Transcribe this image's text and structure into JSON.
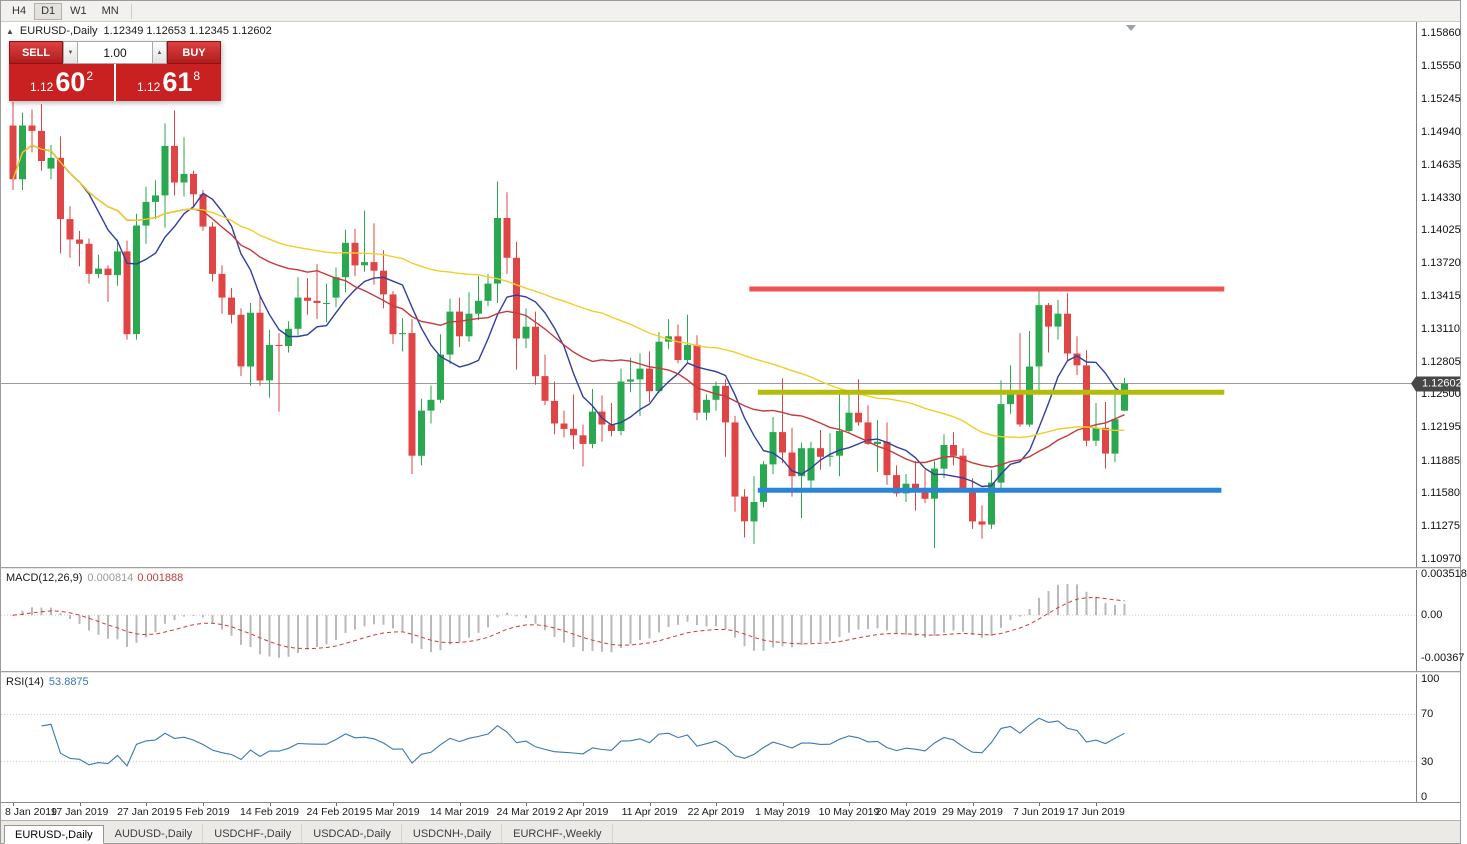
{
  "toolbar": {
    "timeframes": [
      "H4",
      "D1",
      "W1",
      "MN"
    ],
    "active": "D1"
  },
  "chart": {
    "symbol_title": "EURUSD-,Daily",
    "ohlc_text": "1.12349 1.12653 1.12345 1.12602",
    "current_price_label": "1.12602"
  },
  "trade": {
    "sell_label": "SELL",
    "buy_label": "BUY",
    "volume": "1.00",
    "sell_price": {
      "prefix": "1.12",
      "main": "60",
      "pip": "2"
    },
    "buy_price": {
      "prefix": "1.12",
      "main": "61",
      "pip": "8"
    }
  },
  "icons": {
    "collapse": "▲",
    "volume_down": "▼",
    "volume_up": "▲"
  },
  "price_axis": [
    "1.15860",
    "1.15550",
    "1.15245",
    "1.14940",
    "1.14635",
    "1.14330",
    "1.14025",
    "1.13720",
    "1.13415",
    "1.13110",
    "1.12805",
    "1.12500",
    "1.12195",
    "1.11885",
    "1.11580",
    "1.11275",
    "1.10970"
  ],
  "macd": {
    "name": "MACD(12,26,9)",
    "value_main": "0.000814",
    "value_signal": "0.001888",
    "axis": [
      "0.003518",
      "0.00",
      "-0.00367"
    ]
  },
  "rsi": {
    "name": "RSI(14)",
    "value": "53.8875",
    "axis": [
      "100",
      "70",
      "30",
      "0"
    ]
  },
  "tabs": [
    {
      "label": "EURUSD-,Daily",
      "active": true
    },
    {
      "label": "AUDUSD-,Daily",
      "active": false
    },
    {
      "label": "USDCHF-,Daily",
      "active": false
    },
    {
      "label": "USDCAD-,Daily",
      "active": false
    },
    {
      "label": "USDCNH-,Daily",
      "active": false
    },
    {
      "label": "EURCHF-,Weekly",
      "active": false
    }
  ],
  "chart_data": {
    "type": "candlestick",
    "symbol": "EURUSD-",
    "timeframe": "Daily",
    "current_bar": {
      "open": 1.12349,
      "high": 1.12653,
      "low": 1.12345,
      "close": 1.12602
    },
    "price_max": 1.1586,
    "price_min": 1.1097,
    "current_price": 1.12602,
    "ma_periods": {
      "fast": 8,
      "medium": 20,
      "slow": 50
    },
    "macd": {
      "fast": 12,
      "slow": 26,
      "signal": 9,
      "axis_max": 0.003518,
      "axis_min": -0.00367,
      "current_main": 0.000814,
      "current_signal": 0.001888
    },
    "rsi": {
      "period": 14,
      "current": 53.8875
    },
    "levels": [
      {
        "name": "resistance-level",
        "price": 1.1348,
        "color": "#ef5350",
        "from_index": 77.5,
        "to_index": 127.5,
        "width": 5
      },
      {
        "name": "mid-level",
        "price": 1.1252,
        "color": "#b3bd08",
        "from_index": 78.4,
        "to_index": 127.5,
        "width": 5
      },
      {
        "name": "support-level",
        "price": 1.1161,
        "color": "#2a84d8",
        "from_index": 78.4,
        "to_index": 127.2,
        "width": 5
      }
    ],
    "colors": {
      "bull": "#2aa84f",
      "bear": "#e04545",
      "ma_fast": "#2f3f9e",
      "ma_mid": "#c43c3c",
      "ma_slow": "#efcf2a",
      "macd_hist": "#b9b9b9",
      "macd_signal": "#cf3a3a",
      "rsi": "#3a77b5",
      "current_line": "#9b9b9b"
    },
    "date_ticks": [
      {
        "label": "8 Jan 2019",
        "index": 0
      },
      {
        "label": "17 Jan 2019",
        "index": 7
      },
      {
        "label": "27 Jan 2019",
        "index": 14
      },
      {
        "label": "5 Feb 2019",
        "index": 20
      },
      {
        "label": "14 Feb 2019",
        "index": 27
      },
      {
        "label": "24 Feb 2019",
        "index": 34
      },
      {
        "label": "5 Mar 2019",
        "index": 40
      },
      {
        "label": "14 Mar 2019",
        "index": 47
      },
      {
        "label": "24 Mar 2019",
        "index": 54
      },
      {
        "label": "2 Apr 2019",
        "index": 60
      },
      {
        "label": "11 Apr 2019",
        "index": 67
      },
      {
        "label": "22 Apr 2019",
        "index": 74
      },
      {
        "label": "1 May 2019",
        "index": 81
      },
      {
        "label": "10 May 2019",
        "index": 88
      },
      {
        "label": "20 May 2019",
        "index": 94
      },
      {
        "label": "29 May 2019",
        "index": 101
      },
      {
        "label": "7 Jun 2019",
        "index": 108
      },
      {
        "label": "17 Jun 2019",
        "index": 114
      }
    ],
    "candles": [
      [
        1.15,
        1.1522,
        1.144,
        1.145
      ],
      [
        1.145,
        1.1512,
        1.144,
        1.15
      ],
      [
        1.15,
        1.1515,
        1.1475,
        1.1495
      ],
      [
        1.1495,
        1.152,
        1.1458,
        1.1467
      ],
      [
        1.146,
        1.1482,
        1.145,
        1.147
      ],
      [
        1.147,
        1.149,
        1.1381,
        1.1413
      ],
      [
        1.1413,
        1.1425,
        1.1377,
        1.1394
      ],
      [
        1.1394,
        1.1402,
        1.1369,
        1.139
      ],
      [
        1.139,
        1.1395,
        1.1353,
        1.1362
      ],
      [
        1.1362,
        1.138,
        1.1358,
        1.1367
      ],
      [
        1.1367,
        1.137,
        1.1336,
        1.1361
      ],
      [
        1.1361,
        1.1394,
        1.1351,
        1.1383
      ],
      [
        1.1383,
        1.1393,
        1.1301,
        1.1306
      ],
      [
        1.1306,
        1.1418,
        1.1301,
        1.1407
      ],
      [
        1.1407,
        1.1443,
        1.139,
        1.1429
      ],
      [
        1.1429,
        1.1449,
        1.1413,
        1.1435
      ],
      [
        1.1435,
        1.1502,
        1.1405,
        1.1481
      ],
      [
        1.1481,
        1.1514,
        1.1435,
        1.1447
      ],
      [
        1.1447,
        1.1489,
        1.1434,
        1.1455
      ],
      [
        1.1455,
        1.1458,
        1.1425,
        1.1436
      ],
      [
        1.1436,
        1.144,
        1.1402,
        1.1406
      ],
      [
        1.1406,
        1.141,
        1.1355,
        1.1362
      ],
      [
        1.1362,
        1.137,
        1.1325,
        1.134
      ],
      [
        1.134,
        1.1349,
        1.1316,
        1.1324
      ],
      [
        1.1324,
        1.133,
        1.1267,
        1.1276
      ],
      [
        1.1276,
        1.1335,
        1.1258,
        1.1326
      ],
      [
        1.1326,
        1.1341,
        1.1258,
        1.1263
      ],
      [
        1.1263,
        1.131,
        1.1247,
        1.1296
      ],
      [
        1.1296,
        1.1307,
        1.1234,
        1.1295
      ],
      [
        1.1295,
        1.1318,
        1.1289,
        1.1311
      ],
      [
        1.1311,
        1.1359,
        1.1305,
        1.134
      ],
      [
        1.134,
        1.1358,
        1.1324,
        1.1337
      ],
      [
        1.1337,
        1.1371,
        1.132,
        1.1335
      ],
      [
        1.1335,
        1.1353,
        1.1317,
        1.1335
      ],
      [
        1.134,
        1.1368,
        1.1331,
        1.1359
      ],
      [
        1.1359,
        1.1403,
        1.1345,
        1.1391
      ],
      [
        1.1391,
        1.1404,
        1.136,
        1.137
      ],
      [
        1.137,
        1.1421,
        1.1364,
        1.1373
      ],
      [
        1.1373,
        1.1409,
        1.1352,
        1.1365
      ],
      [
        1.1365,
        1.1384,
        1.133,
        1.1343
      ],
      [
        1.1343,
        1.1346,
        1.1297,
        1.1306
      ],
      [
        1.1306,
        1.1321,
        1.129,
        1.1307
      ],
      [
        1.1307,
        1.132,
        1.1176,
        1.1193
      ],
      [
        1.1193,
        1.1246,
        1.1184,
        1.1235
      ],
      [
        1.1235,
        1.1258,
        1.1223,
        1.1245
      ],
      [
        1.1245,
        1.1306,
        1.1242,
        1.1287
      ],
      [
        1.1287,
        1.1339,
        1.1278,
        1.1327
      ],
      [
        1.1327,
        1.134,
        1.1294,
        1.1304
      ],
      [
        1.1304,
        1.1345,
        1.1299,
        1.1325
      ],
      [
        1.1325,
        1.136,
        1.1319,
        1.1337
      ],
      [
        1.1337,
        1.1362,
        1.1332,
        1.1353
      ],
      [
        1.1353,
        1.1448,
        1.1335,
        1.1414
      ],
      [
        1.1414,
        1.1438,
        1.1362,
        1.1377
      ],
      [
        1.1377,
        1.1392,
        1.1273,
        1.1302
      ],
      [
        1.1302,
        1.133,
        1.1293,
        1.1313
      ],
      [
        1.1313,
        1.1327,
        1.1259,
        1.1267
      ],
      [
        1.1267,
        1.1287,
        1.124,
        1.1244
      ],
      [
        1.1244,
        1.1262,
        1.1213,
        1.1223
      ],
      [
        1.1223,
        1.1235,
        1.121,
        1.1218
      ],
      [
        1.1218,
        1.125,
        1.1199,
        1.1212
      ],
      [
        1.1212,
        1.1222,
        1.1183,
        1.1204
      ],
      [
        1.1204,
        1.1255,
        1.12,
        1.1234
      ],
      [
        1.1234,
        1.1249,
        1.1206,
        1.1222
      ],
      [
        1.1222,
        1.1242,
        1.1211,
        1.1216
      ],
      [
        1.1216,
        1.1274,
        1.1212,
        1.1262
      ],
      [
        1.1262,
        1.1284,
        1.1252,
        1.1264
      ],
      [
        1.1264,
        1.1288,
        1.123,
        1.1274
      ],
      [
        1.1274,
        1.129,
        1.1243,
        1.1253
      ],
      [
        1.1253,
        1.1308,
        1.1251,
        1.1299
      ],
      [
        1.1299,
        1.132,
        1.1292,
        1.1304
      ],
      [
        1.1304,
        1.1315,
        1.1279,
        1.1282
      ],
      [
        1.1282,
        1.1324,
        1.128,
        1.1296
      ],
      [
        1.1296,
        1.1305,
        1.1226,
        1.1233
      ],
      [
        1.1233,
        1.125,
        1.1226,
        1.1245
      ],
      [
        1.1245,
        1.1262,
        1.1235,
        1.1258
      ],
      [
        1.1258,
        1.1264,
        1.1192,
        1.1224
      ],
      [
        1.1224,
        1.123,
        1.1141,
        1.1155
      ],
      [
        1.1155,
        1.1162,
        1.1117,
        1.1132
      ],
      [
        1.1132,
        1.1174,
        1.1111,
        1.115
      ],
      [
        1.115,
        1.1188,
        1.1145,
        1.1185
      ],
      [
        1.1185,
        1.1229,
        1.1176,
        1.1215
      ],
      [
        1.1215,
        1.1265,
        1.1186,
        1.1196
      ],
      [
        1.1196,
        1.1219,
        1.1155,
        1.1174
      ],
      [
        1.1174,
        1.1205,
        1.1135,
        1.12
      ],
      [
        1.117,
        1.1206,
        1.116,
        1.12
      ],
      [
        1.12,
        1.1217,
        1.118,
        1.1192
      ],
      [
        1.1192,
        1.1214,
        1.1183,
        1.1193
      ],
      [
        1.1193,
        1.1251,
        1.1174,
        1.1216
      ],
      [
        1.1216,
        1.1254,
        1.1214,
        1.1233
      ],
      [
        1.1233,
        1.1264,
        1.1221,
        1.1224
      ],
      [
        1.1224,
        1.124,
        1.1203,
        1.1204
      ],
      [
        1.1204,
        1.1226,
        1.1178,
        1.1206
      ],
      [
        1.1206,
        1.1224,
        1.1166,
        1.1175
      ],
      [
        1.1175,
        1.1184,
        1.1155,
        1.1158
      ],
      [
        1.1158,
        1.1176,
        1.115,
        1.1167
      ],
      [
        1.1167,
        1.1188,
        1.1142,
        1.1162
      ],
      [
        1.1162,
        1.118,
        1.1149,
        1.1153
      ],
      [
        1.1153,
        1.1188,
        1.1107,
        1.1181
      ],
      [
        1.1181,
        1.1213,
        1.1172,
        1.1203
      ],
      [
        1.1203,
        1.1215,
        1.1184,
        1.1193
      ],
      [
        1.1193,
        1.12,
        1.1159,
        1.1162
      ],
      [
        1.1162,
        1.1172,
        1.1125,
        1.1132
      ],
      [
        1.1132,
        1.1147,
        1.1116,
        1.1129
      ],
      [
        1.1129,
        1.118,
        1.1125,
        1.1168
      ],
      [
        1.1168,
        1.1263,
        1.116,
        1.1241
      ],
      [
        1.1241,
        1.1277,
        1.1232,
        1.1253
      ],
      [
        1.1253,
        1.1307,
        1.122,
        1.1222
      ],
      [
        1.1222,
        1.1309,
        1.122,
        1.1276
      ],
      [
        1.1276,
        1.1348,
        1.1251,
        1.1333
      ],
      [
        1.1333,
        1.1335,
        1.1289,
        1.1313
      ],
      [
        1.1313,
        1.1338,
        1.1301,
        1.1325
      ],
      [
        1.1325,
        1.1344,
        1.1282,
        1.1288
      ],
      [
        1.1288,
        1.1304,
        1.1268,
        1.1277
      ],
      [
        1.1277,
        1.1291,
        1.1202,
        1.1207
      ],
      [
        1.1207,
        1.1242,
        1.1202,
        1.1219
      ],
      [
        1.1219,
        1.1243,
        1.1181,
        1.1195
      ],
      [
        1.1195,
        1.1255,
        1.1187,
        1.1227
      ],
      [
        1.12349,
        1.12653,
        1.12345,
        1.12602
      ]
    ]
  }
}
